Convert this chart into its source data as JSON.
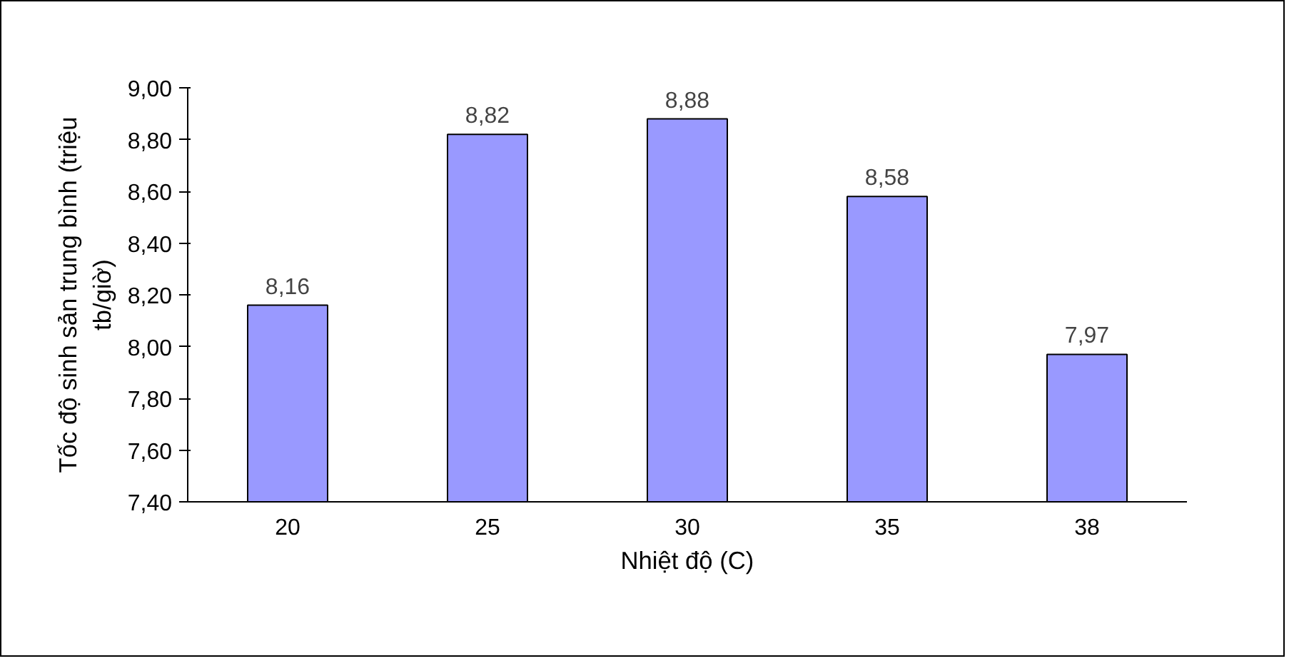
{
  "chart_data": {
    "type": "bar",
    "xlabel": "Nhiệt độ (C)",
    "ylabel": "Tốc độ sinh sản trung bình (triệu tb/giờ)",
    "categories": [
      "20",
      "25",
      "30",
      "35",
      "38"
    ],
    "values": [
      8.16,
      8.82,
      8.88,
      8.58,
      7.97
    ],
    "value_labels": [
      "8,16",
      "8,82",
      "8,88",
      "8,58",
      "7,97"
    ],
    "color": "#9999ff",
    "ylim": [
      7.4,
      9.0
    ],
    "yticks": [
      {
        "value": 7.4,
        "label": "7,40"
      },
      {
        "value": 7.6,
        "label": "7,60"
      },
      {
        "value": 7.8,
        "label": "7,80"
      },
      {
        "value": 8.0,
        "label": "8,00"
      },
      {
        "value": 8.2,
        "label": "8,20"
      },
      {
        "value": 8.4,
        "label": "8,40"
      },
      {
        "value": 8.6,
        "label": "8,60"
      },
      {
        "value": 8.8,
        "label": "8,80"
      },
      {
        "value": 9.0,
        "label": "9,00"
      }
    ],
    "grid": false
  }
}
